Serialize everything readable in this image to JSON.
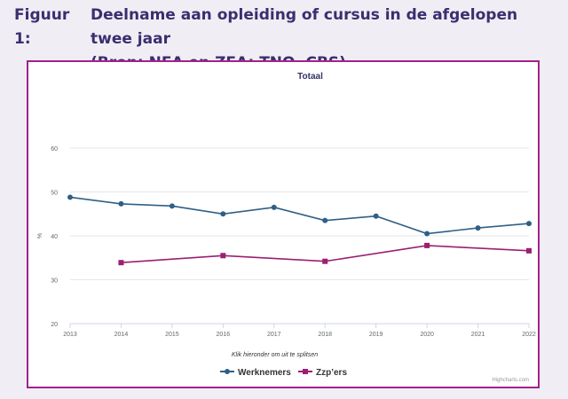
{
  "figure": {
    "label": "Figuur 1:",
    "title_line1": "Deelname aan opleiding of cursus in de afgelopen twee jaar",
    "title_line2": "(Bron: NEA en ZEA: TNO, CBS)"
  },
  "chart_data": {
    "type": "line",
    "title": "Totaal",
    "xlabel": "",
    "ylabel": "%",
    "x": [
      2013,
      2014,
      2015,
      2016,
      2017,
      2018,
      2019,
      2020,
      2021,
      2022
    ],
    "ylim": [
      20,
      60
    ],
    "yticks": [
      20,
      30,
      40,
      50,
      60
    ],
    "grid": true,
    "legend_title": "Klik hieronder om uit te splitsen",
    "legend_position": "bottom-center",
    "series": [
      {
        "name": "Werknemers",
        "color": "#2f5f85",
        "marker": "circle",
        "values": [
          48.8,
          47.3,
          46.8,
          45.0,
          46.5,
          43.5,
          44.5,
          40.5,
          41.8,
          42.8
        ]
      },
      {
        "name": "Zzp’ers",
        "color": "#9b1f73",
        "marker": "square",
        "values": [
          null,
          33.9,
          null,
          35.5,
          null,
          34.2,
          null,
          37.8,
          null,
          36.6
        ]
      }
    ],
    "credits": "Highcharts.com"
  }
}
